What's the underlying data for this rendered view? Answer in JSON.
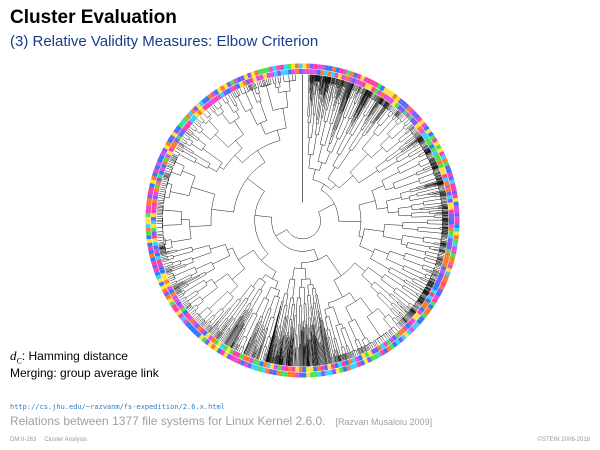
{
  "slide": {
    "title": "Cluster Evaluation",
    "subtitle": "(3) Relative Validity Measures: Elbow Criterion"
  },
  "caption": {
    "distance_symbol": "d",
    "distance_subscript": "C",
    "distance_text": ": Hamming distance",
    "merging": "Merging: group average link"
  },
  "source": {
    "url": "http://cs.jhu.edu/~razvanm/fs-expedition/2.6.x.html",
    "description": "Relations between 1377 file systems for Linux Kernel 2.6.0.",
    "reference": "[Razvan Musaloiu 2009]"
  },
  "footer": {
    "page": "DM:II-263",
    "section": "Cluster Analysis",
    "copyright": "©STEIN 2006-2018"
  },
  "figure": {
    "leaf_count": 1377,
    "ring_colors": [
      "#ff3fa6",
      "#ffe23a",
      "#3ad0ff",
      "#7a5cff",
      "#4fe04f",
      "#ff7a2f",
      "#e04fe0",
      "#2f7bff"
    ]
  }
}
